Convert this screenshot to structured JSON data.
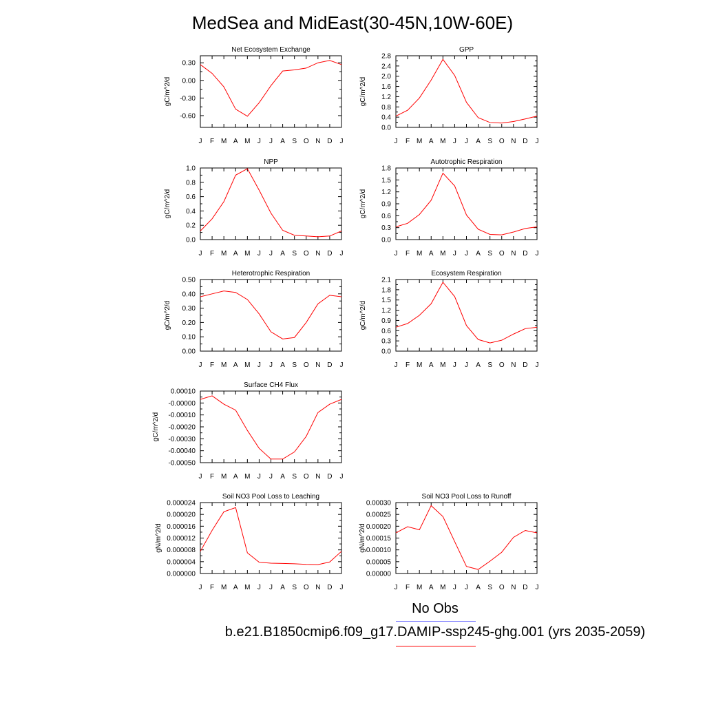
{
  "figure": {
    "title": "MedSea and MidEast(30-45N,10W-60E)",
    "legend": [
      {
        "label": "No Obs",
        "color": "#8080ff"
      },
      {
        "label": "b.e21.B1850cmip6.f09_g17.DAMIP-ssp245-ghg.001 (yrs 2035-2059)",
        "color": "#ff0000"
      }
    ]
  },
  "chart_data": [
    {
      "type": "line",
      "title": "Net Ecosystem Exchange",
      "ylabel": "gC/m^2/d",
      "categories": [
        "J",
        "F",
        "M",
        "A",
        "M",
        "J",
        "J",
        "A",
        "S",
        "O",
        "N",
        "D",
        "J"
      ],
      "ylim": [
        -0.8,
        0.42
      ],
      "yticks": [
        -0.6,
        -0.3,
        0.0,
        0.3
      ],
      "ytick_labels": [
        "-0.60",
        "-0.30",
        "0.00",
        "0.30"
      ],
      "series": [
        {
          "color": "#ff0000",
          "values": [
            0.27,
            0.12,
            -0.11,
            -0.49,
            -0.61,
            -0.38,
            -0.09,
            0.16,
            0.18,
            0.21,
            0.3,
            0.34,
            0.27
          ]
        }
      ]
    },
    {
      "type": "line",
      "title": "GPP",
      "ylabel": "gC/m^2/d",
      "categories": [
        "J",
        "F",
        "M",
        "A",
        "M",
        "J",
        "J",
        "A",
        "S",
        "O",
        "N",
        "D",
        "J"
      ],
      "ylim": [
        0.0,
        2.8
      ],
      "yticks": [
        0.0,
        0.4,
        0.8,
        1.2,
        1.6,
        2.0,
        2.4,
        2.8
      ],
      "ytick_labels": [
        "0.0",
        "0.4",
        "0.8",
        "1.2",
        "1.6",
        "2.0",
        "2.4",
        "2.8"
      ],
      "series": [
        {
          "color": "#ff0000",
          "values": [
            0.44,
            0.67,
            1.15,
            1.85,
            2.66,
            2.03,
            0.98,
            0.38,
            0.19,
            0.17,
            0.23,
            0.33,
            0.44
          ]
        }
      ]
    },
    {
      "type": "line",
      "title": "NPP",
      "ylabel": "gC/m^2/d",
      "categories": [
        "J",
        "F",
        "M",
        "A",
        "M",
        "J",
        "J",
        "A",
        "S",
        "O",
        "N",
        "D",
        "J"
      ],
      "ylim": [
        0.0,
        1.0
      ],
      "yticks": [
        0.0,
        0.2,
        0.4,
        0.6,
        0.8,
        1.0
      ],
      "ytick_labels": [
        "0.0",
        "0.2",
        "0.4",
        "0.6",
        "0.8",
        "1.0"
      ],
      "series": [
        {
          "color": "#ff0000",
          "values": [
            0.12,
            0.29,
            0.53,
            0.9,
            0.99,
            0.69,
            0.37,
            0.13,
            0.06,
            0.05,
            0.04,
            0.05,
            0.12
          ]
        }
      ]
    },
    {
      "type": "line",
      "title": "Autotrophic Respiration",
      "ylabel": "gC/m^2/d",
      "categories": [
        "J",
        "F",
        "M",
        "A",
        "M",
        "J",
        "J",
        "A",
        "S",
        "O",
        "N",
        "D",
        "J"
      ],
      "ylim": [
        0.0,
        1.8
      ],
      "yticks": [
        0.0,
        0.3,
        0.6,
        0.9,
        1.2,
        1.5,
        1.8
      ],
      "ytick_labels": [
        "0.0",
        "0.3",
        "0.6",
        "0.9",
        "1.2",
        "1.5",
        "1.8"
      ],
      "series": [
        {
          "color": "#ff0000",
          "values": [
            0.32,
            0.41,
            0.63,
            0.99,
            1.67,
            1.35,
            0.62,
            0.26,
            0.13,
            0.12,
            0.19,
            0.28,
            0.32
          ]
        }
      ]
    },
    {
      "type": "line",
      "title": "Heterotrophic Respiration",
      "ylabel": "gC/m^2/d",
      "categories": [
        "J",
        "F",
        "M",
        "A",
        "M",
        "J",
        "J",
        "A",
        "S",
        "O",
        "N",
        "D",
        "J"
      ],
      "ylim": [
        0.0,
        0.5
      ],
      "yticks": [
        0.0,
        0.1,
        0.2,
        0.3,
        0.4,
        0.5
      ],
      "ytick_labels": [
        "0.00",
        "0.10",
        "0.20",
        "0.30",
        "0.40",
        "0.50"
      ],
      "series": [
        {
          "color": "#ff0000",
          "values": [
            0.38,
            0.4,
            0.42,
            0.41,
            0.36,
            0.26,
            0.135,
            0.085,
            0.095,
            0.2,
            0.33,
            0.39,
            0.38
          ]
        }
      ]
    },
    {
      "type": "line",
      "title": "Ecosystem Respiration",
      "ylabel": "gC/m^2/d",
      "categories": [
        "J",
        "F",
        "M",
        "A",
        "M",
        "J",
        "J",
        "A",
        "S",
        "O",
        "N",
        "D",
        "J"
      ],
      "ylim": [
        0.0,
        2.1
      ],
      "yticks": [
        0.0,
        0.3,
        0.6,
        0.9,
        1.2,
        1.5,
        1.8,
        2.1
      ],
      "ytick_labels": [
        "0.0",
        "0.3",
        "0.6",
        "0.9",
        "1.2",
        "1.5",
        "1.8",
        "2.1"
      ],
      "series": [
        {
          "color": "#ff0000",
          "values": [
            0.7,
            0.81,
            1.05,
            1.39,
            2.02,
            1.6,
            0.75,
            0.34,
            0.24,
            0.32,
            0.5,
            0.66,
            0.7
          ]
        }
      ]
    },
    {
      "type": "line",
      "title": "Surface CH4 Flux",
      "ylabel": "gC/m^2/d",
      "categories": [
        "J",
        "F",
        "M",
        "A",
        "M",
        "J",
        "J",
        "A",
        "S",
        "O",
        "N",
        "D",
        "J"
      ],
      "ylim": [
        -0.0005,
        0.0001
      ],
      "yticks": [
        -0.0005,
        -0.0004,
        -0.0003,
        -0.0002,
        -0.0001,
        0.0,
        0.0001
      ],
      "ytick_labels": [
        "-0.00050",
        "-0.00040",
        "-0.00030",
        "-0.00020",
        "-0.00010",
        "-0.00000",
        "0.00010"
      ],
      "series": [
        {
          "color": "#ff0000",
          "values": [
            3e-05,
            6e-05,
            -1e-05,
            -6e-05,
            -0.00023,
            -0.00038,
            -0.00047,
            -0.00047,
            -0.00041,
            -0.00028,
            -8e-05,
            -1e-05,
            3e-05
          ]
        }
      ]
    },
    {
      "type": "line",
      "title": "Soil NO3 Pool Loss to Leaching",
      "ylabel": "gN/m^2/d",
      "categories": [
        "J",
        "F",
        "M",
        "A",
        "M",
        "J",
        "J",
        "A",
        "S",
        "O",
        "N",
        "D",
        "J"
      ],
      "ylim": [
        0.0,
        2.4e-05
      ],
      "yticks": [
        0.0,
        4e-06,
        8e-06,
        1.2e-05,
        1.6e-05,
        2e-05,
        2.4e-05
      ],
      "ytick_labels": [
        "0.000000",
        "0.000004",
        "0.000008",
        "0.000012",
        "0.000016",
        "0.000020",
        "0.000024"
      ],
      "series": [
        {
          "color": "#ff0000",
          "values": [
            7.5e-06,
            1.46e-05,
            2.09e-05,
            2.23e-05,
            7e-06,
            3.8e-06,
            3.5e-06,
            3.4e-06,
            3.3e-06,
            3.1e-06,
            3e-06,
            3.9e-06,
            7.5e-06
          ]
        }
      ]
    },
    {
      "type": "line",
      "title": "Soil NO3 Pool Loss to Runoff",
      "ylabel": "gN/m^2/d",
      "categories": [
        "J",
        "F",
        "M",
        "A",
        "M",
        "J",
        "J",
        "A",
        "S",
        "O",
        "N",
        "D",
        "J"
      ],
      "ylim": [
        0.0,
        0.0003
      ],
      "yticks": [
        0.0,
        5e-05,
        0.0001,
        0.00015,
        0.0002,
        0.00025,
        0.0003
      ],
      "ytick_labels": [
        "0.00000",
        "0.00005",
        "0.00010",
        "0.00015",
        "0.00020",
        "0.00025",
        "0.00030"
      ],
      "series": [
        {
          "color": "#ff0000",
          "values": [
            0.000172,
            0.000198,
            0.000185,
            0.000287,
            0.000241,
            0.000135,
            3e-05,
            1.7e-05,
            5.2e-05,
            9e-05,
            0.000153,
            0.000182,
            0.000172
          ]
        }
      ]
    }
  ]
}
